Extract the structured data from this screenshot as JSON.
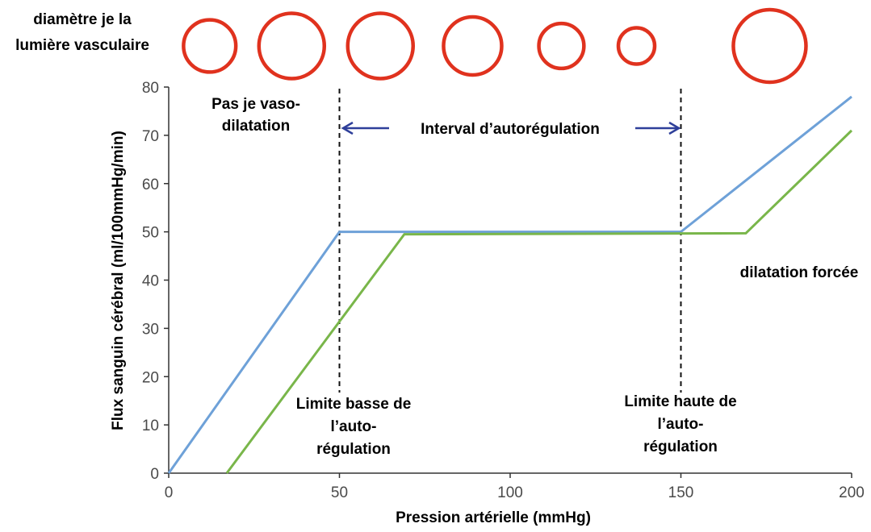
{
  "chart_data": {
    "type": "line",
    "xlabel": "Pression artérielle (mmHg)",
    "ylabel": "Flux sanguin cérébral (ml/100mmHg/min)",
    "xlim": [
      0,
      200
    ],
    "ylim": [
      0,
      80
    ],
    "x_ticks": [
      "0",
      "50",
      "100",
      "150",
      "200"
    ],
    "y_ticks": [
      "0",
      "10",
      "20",
      "30",
      "40",
      "50",
      "60",
      "70",
      "80"
    ],
    "grid": false,
    "colors": {
      "series1": "#6ea1d8",
      "series2": "#79b64a",
      "circle": "#e0321e",
      "arrow": "#2e3f9a"
    },
    "series": [
      {
        "points": [
          [
            0,
            0
          ],
          [
            50,
            50
          ],
          [
            150,
            50
          ],
          [
            200,
            78
          ]
        ]
      },
      {
        "points": [
          [
            17,
            0
          ],
          [
            69,
            49.5
          ],
          [
            169,
            49.7
          ],
          [
            200,
            71
          ]
        ]
      }
    ],
    "vertical_markers": [
      50,
      150
    ],
    "annotations": {
      "diameter_label_line1": "diamètre je la",
      "diameter_label_line2": "lumière vasculaire",
      "no_vasodilation_line1": "Pas je vaso-",
      "no_vasodilation_line2": "dilatation",
      "interval": "Interval d’autorégulation",
      "forced_dilation": "dilatation forcée",
      "lower_limit_line1": "Limite basse de",
      "lower_limit_line2": "l’auto-",
      "lower_limit_line3": "régulation",
      "upper_limit_line1": "Limite haute de",
      "upper_limit_line2": "l’auto-",
      "upper_limit_line3": "régulation"
    },
    "vessel_circles": [
      {
        "x": 12,
        "diameter_rel": 0.72
      },
      {
        "x": 36,
        "diameter_rel": 0.9
      },
      {
        "x": 62,
        "diameter_rel": 0.9
      },
      {
        "x": 89,
        "diameter_rel": 0.8
      },
      {
        "x": 115,
        "diameter_rel": 0.62
      },
      {
        "x": 137,
        "diameter_rel": 0.5
      },
      {
        "x": 176,
        "diameter_rel": 1.0
      }
    ]
  }
}
